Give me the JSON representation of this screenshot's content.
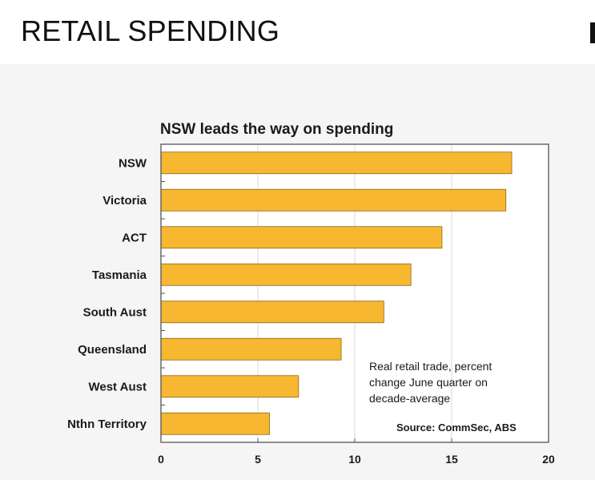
{
  "page": {
    "heading": "RETAIL SPENDING"
  },
  "chart_data": {
    "type": "bar",
    "orientation": "horizontal",
    "title": "NSW leads the way on spending",
    "categories": [
      "NSW",
      "Victoria",
      "ACT",
      "Tasmania",
      "South Aust",
      "Queensland",
      "West Aust",
      "Nthn Territory"
    ],
    "values": [
      18.1,
      17.8,
      14.5,
      12.9,
      11.5,
      9.3,
      7.1,
      5.6
    ],
    "xlim": [
      0,
      20
    ],
    "xticks": [
      "0",
      "5",
      "10",
      "15",
      "20"
    ],
    "xlabel": "",
    "ylabel": "",
    "grid": true,
    "annotation_lines": [
      "Real retail trade, percent",
      "change June quarter on",
      "decade-average"
    ],
    "source": "Source: CommSec, ABS",
    "colors": {
      "bar_fill": "#f7b731",
      "bar_stroke": "#8a6a10",
      "plot_background": "#ffffff",
      "frame": "#555555",
      "grid": "#d8d8d8"
    }
  }
}
